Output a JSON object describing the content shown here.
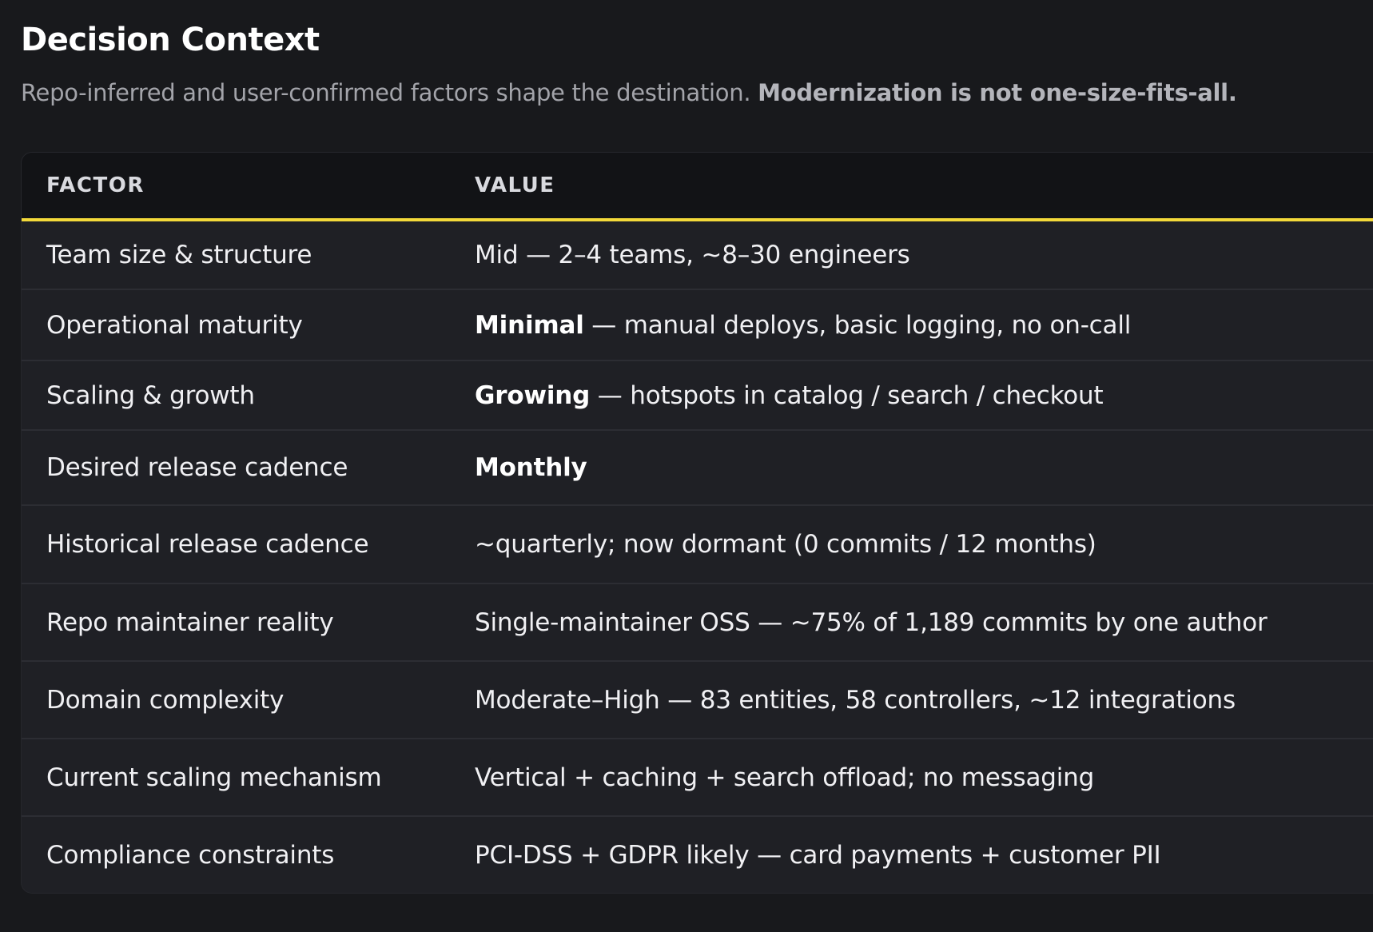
{
  "header": {
    "title": "Decision Context",
    "subtitle_plain": "Repo-inferred and user-confirmed factors shape the destination. ",
    "subtitle_bold": "Modernization is not one-size-fits-all."
  },
  "table": {
    "columns": [
      "FACTOR",
      "VALUE"
    ],
    "accent_color": "#f3d93a",
    "rows": [
      {
        "factor": "Team size & structure",
        "value_bold": "",
        "value": "Mid — 2–4 teams, ~8–30 engineers"
      },
      {
        "factor": "Operational maturity",
        "value_bold": "Minimal",
        "value": " — manual deploys, basic logging, no on-call"
      },
      {
        "factor": "Scaling & growth",
        "value_bold": "Growing",
        "value": " — hotspots in catalog / search / checkout"
      },
      {
        "factor": "Desired release cadence",
        "value_bold": "Monthly",
        "value": ""
      },
      {
        "factor": "Historical release cadence",
        "value_bold": "",
        "value": "~quarterly; now dormant (0 commits / 12 months)"
      },
      {
        "factor": "Repo maintainer reality",
        "value_bold": "",
        "value": "Single-maintainer OSS — ~75% of 1,189 commits by one author"
      },
      {
        "factor": "Domain complexity",
        "value_bold": "",
        "value": "Moderate–High — 83 entities, 58 controllers, ~12 integrations"
      },
      {
        "factor": "Current scaling mechanism",
        "value_bold": "",
        "value": "Vertical + caching + search offload; no messaging"
      },
      {
        "factor": "Compliance constraints",
        "value_bold": "",
        "value": "PCI-DSS + GDPR likely — card payments + customer PII"
      }
    ]
  }
}
